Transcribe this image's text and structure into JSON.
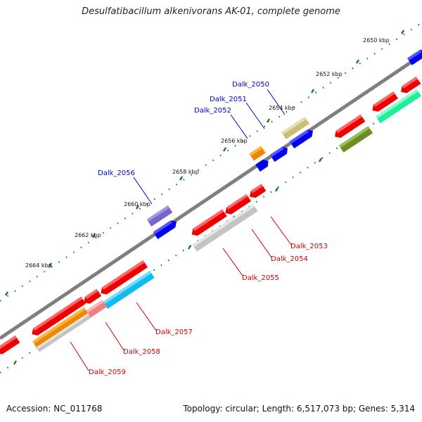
{
  "title": "Desulfatibacillum alkenivorans AK-01, complete genome",
  "footer": {
    "accession": "Accession: NC_011768",
    "summary": "Topology: circular; Length: 6,517,073 bp; Genes: 5,314"
  },
  "colors": {
    "backbone": "#7f7f7f",
    "tick": "#1e7a1e",
    "label_forward": "#0000cc",
    "label_reverse": "#cc0000"
  },
  "ticks": [
    "2650 kbp",
    "2652 kbp",
    "2654 kbp",
    "2656 kbp",
    "2658 kbp",
    "2660 kbp",
    "2662 kbp",
    "2664 kbp"
  ],
  "gene_labels": {
    "dalk_2050": "Dalk_2050",
    "dalk_2051": "Dalk_2051",
    "dalk_2052": "Dalk_2052",
    "dalk_2056": "Dalk_2056",
    "dalk_2053": "Dalk_2053",
    "dalk_2054": "Dalk_2054",
    "dalk_2055": "Dalk_2055",
    "dalk_2057": "Dalk_2057",
    "dalk_2058": "Dalk_2058",
    "dalk_2059": "Dalk_2059"
  },
  "gene_colors": {
    "red": "#ee0000",
    "blue": "#0000ee",
    "tan": "#c8c07a",
    "orange": "#ee8800",
    "purple": "#7766cc",
    "olive": "#6b8e23",
    "mint": "#22ee99",
    "gray": "#c4c4c4",
    "pink": "#f08080",
    "cyan": "#11bbee"
  }
}
